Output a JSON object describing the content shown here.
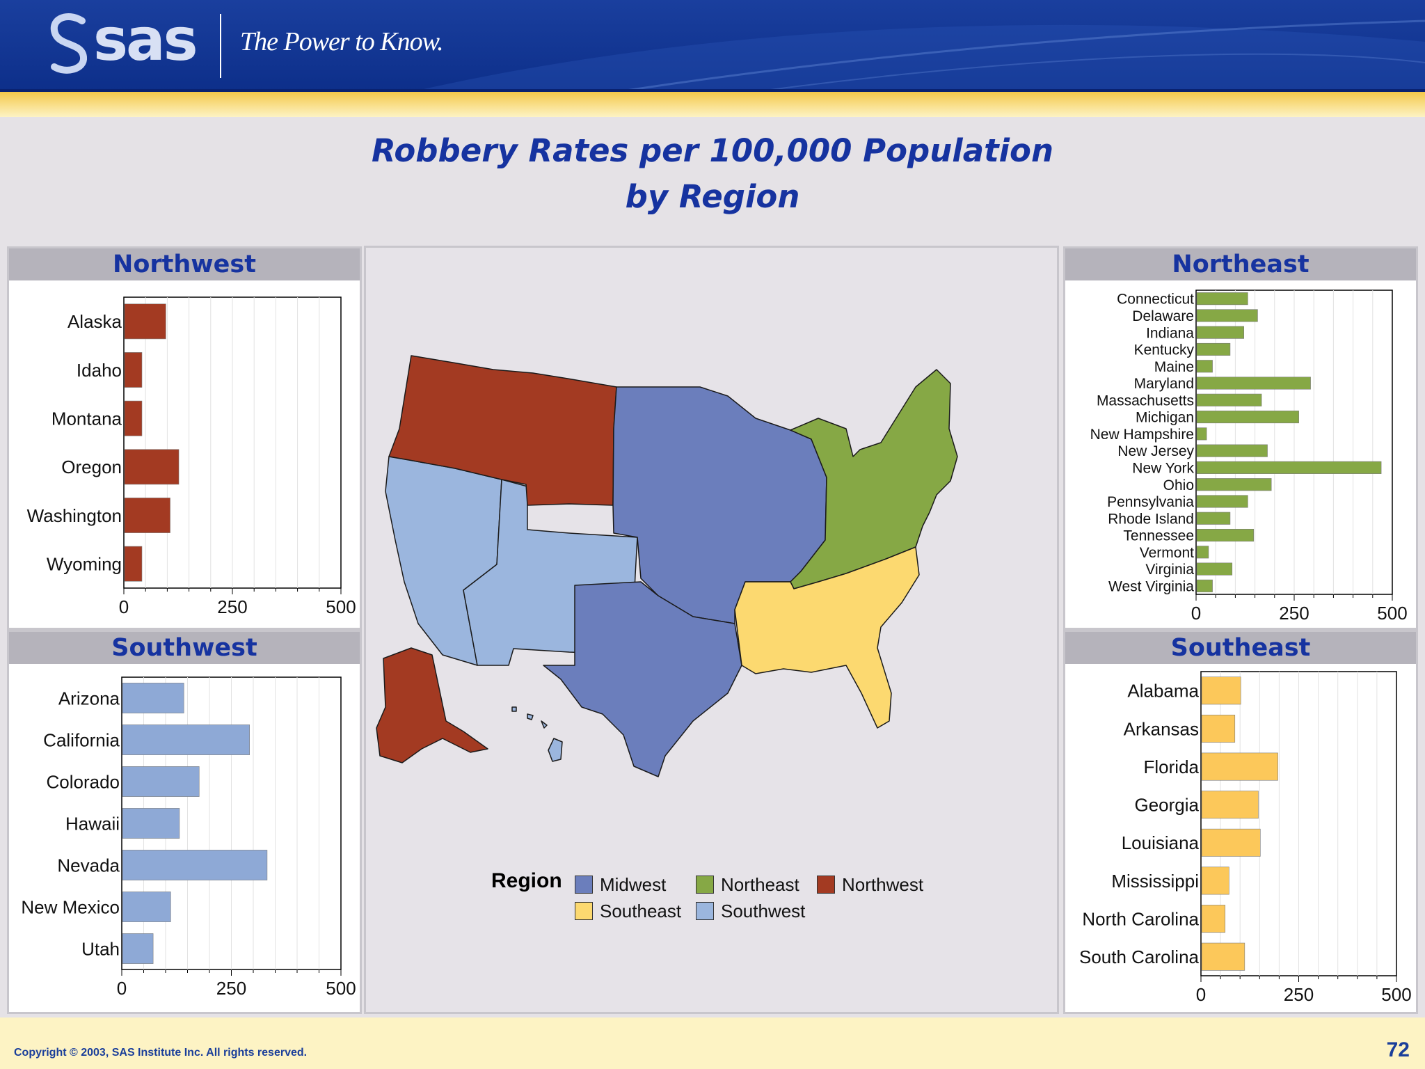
{
  "header": {
    "logo_text": "sas",
    "tagline": "The Power to Know."
  },
  "footer": {
    "copyright": "Copyright © 2003, SAS Institute Inc. All rights reserved.",
    "page_number": "72"
  },
  "colors": {
    "Midwest": "#6b7ebc",
    "Northeast": "#86a845",
    "Northwest": "#a33a22",
    "Southeast": "#fcd970",
    "Southwest": "#9bb6de",
    "title_blue": "#1633a0"
  },
  "map": {
    "legend_title": "Region",
    "legend": [
      {
        "label": "Midwest",
        "color": "#6b7ebc"
      },
      {
        "label": "Northeast",
        "color": "#86a845"
      },
      {
        "label": "Northwest",
        "color": "#a33a22"
      },
      {
        "label": "Southeast",
        "color": "#fcd970"
      },
      {
        "label": "Southwest",
        "color": "#9bb6de"
      }
    ]
  },
  "chart_data": [
    {
      "type": "map",
      "title": "Robbery Rates per 100,000 Population by Region",
      "title_lines": [
        "Robbery Rates per 100,000 Population",
        "by Region"
      ],
      "regions": [
        "Midwest",
        "Northeast",
        "Northwest",
        "Southeast",
        "Southwest"
      ]
    },
    {
      "type": "bar",
      "orientation": "horizontal",
      "title": "Northwest",
      "categories": [
        "Alaska",
        "Idaho",
        "Montana",
        "Oregon",
        "Washington",
        "Wyoming"
      ],
      "values": [
        95,
        40,
        40,
        125,
        105,
        40
      ],
      "xlim": [
        0,
        500
      ],
      "ticks": [
        0,
        250,
        500
      ],
      "color": "#a33a22"
    },
    {
      "type": "bar",
      "orientation": "horizontal",
      "title": "Southwest",
      "categories": [
        "Arizona",
        "California",
        "Colorado",
        "Hawaii",
        "Nevada",
        "New Mexico",
        "Utah"
      ],
      "values": [
        140,
        290,
        175,
        130,
        330,
        110,
        70
      ],
      "xlim": [
        0,
        500
      ],
      "ticks": [
        0,
        250,
        500
      ],
      "color": "#8ea9d6"
    },
    {
      "type": "bar",
      "orientation": "horizontal",
      "title": "Northeast",
      "categories": [
        "Connecticut",
        "Delaware",
        "Indiana",
        "Kentucky",
        "Maine",
        "Maryland",
        "Massachusetts",
        "Michigan",
        "New Hampshire",
        "New Jersey",
        "New York",
        "Ohio",
        "Pennsylvania",
        "Rhode Island",
        "Tennessee",
        "Vermont",
        "Virginia",
        "West Virginia"
      ],
      "values": [
        130,
        155,
        120,
        85,
        40,
        290,
        165,
        260,
        25,
        180,
        470,
        190,
        130,
        85,
        145,
        30,
        90,
        40
      ],
      "xlim": [
        0,
        500
      ],
      "ticks": [
        0,
        250,
        500
      ],
      "color": "#86a845"
    },
    {
      "type": "bar",
      "orientation": "horizontal",
      "title": "Southeast",
      "categories": [
        "Alabama",
        "Arkansas",
        "Florida",
        "Georgia",
        "Louisiana",
        "Mississippi",
        "North Carolina",
        "South Carolina"
      ],
      "values": [
        100,
        85,
        195,
        145,
        150,
        70,
        60,
        110
      ],
      "xlim": [
        0,
        500
      ],
      "ticks": [
        0,
        250,
        500
      ],
      "color": "#fcc85a"
    }
  ]
}
